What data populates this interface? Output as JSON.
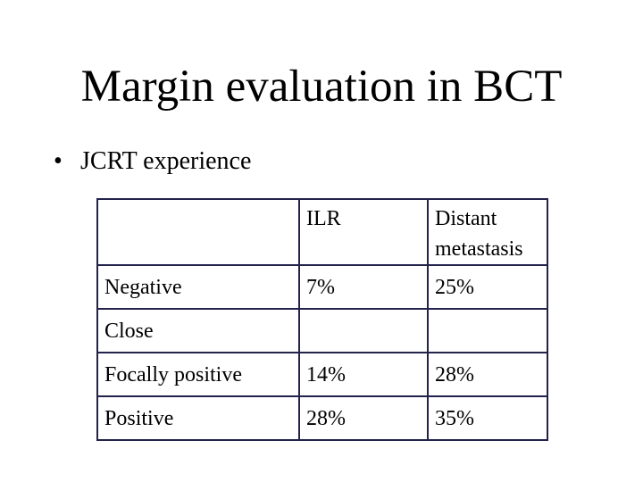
{
  "title": "Margin evaluation in BCT",
  "bullets": [
    "JCRT experience"
  ],
  "table": {
    "header": [
      null,
      "ILR",
      "Distant metastasis"
    ],
    "rows": [
      [
        "Negative",
        "7%",
        "25%"
      ],
      [
        "Close",
        null,
        null
      ],
      [
        "Focally positive",
        "14%",
        "28%"
      ],
      [
        "Positive",
        "28%",
        "35%"
      ]
    ]
  }
}
